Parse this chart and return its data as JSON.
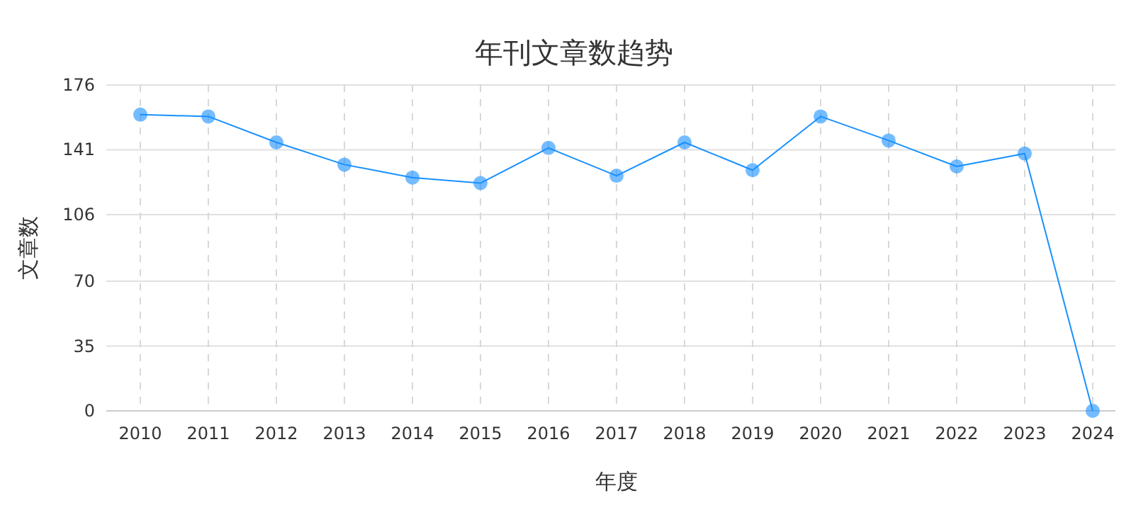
{
  "chart_data": {
    "type": "line",
    "title": "年刊文章数趋势",
    "xlabel": "年度",
    "ylabel": "文章数",
    "categories": [
      "2010",
      "2011",
      "2012",
      "2013",
      "2014",
      "2015",
      "2016",
      "2017",
      "2018",
      "2019",
      "2020",
      "2021",
      "2022",
      "2023",
      "2024"
    ],
    "series": [
      {
        "color": "#1890ff",
        "values": [
          160,
          159,
          145,
          133,
          126,
          123,
          142,
          127,
          145,
          130,
          159,
          146,
          132,
          139,
          0
        ]
      }
    ],
    "ylim": [
      0,
      176
    ],
    "yticks": [
      0,
      35,
      70,
      106,
      141,
      176
    ],
    "grid": true,
    "marker": "circle",
    "line_style": "solid"
  }
}
